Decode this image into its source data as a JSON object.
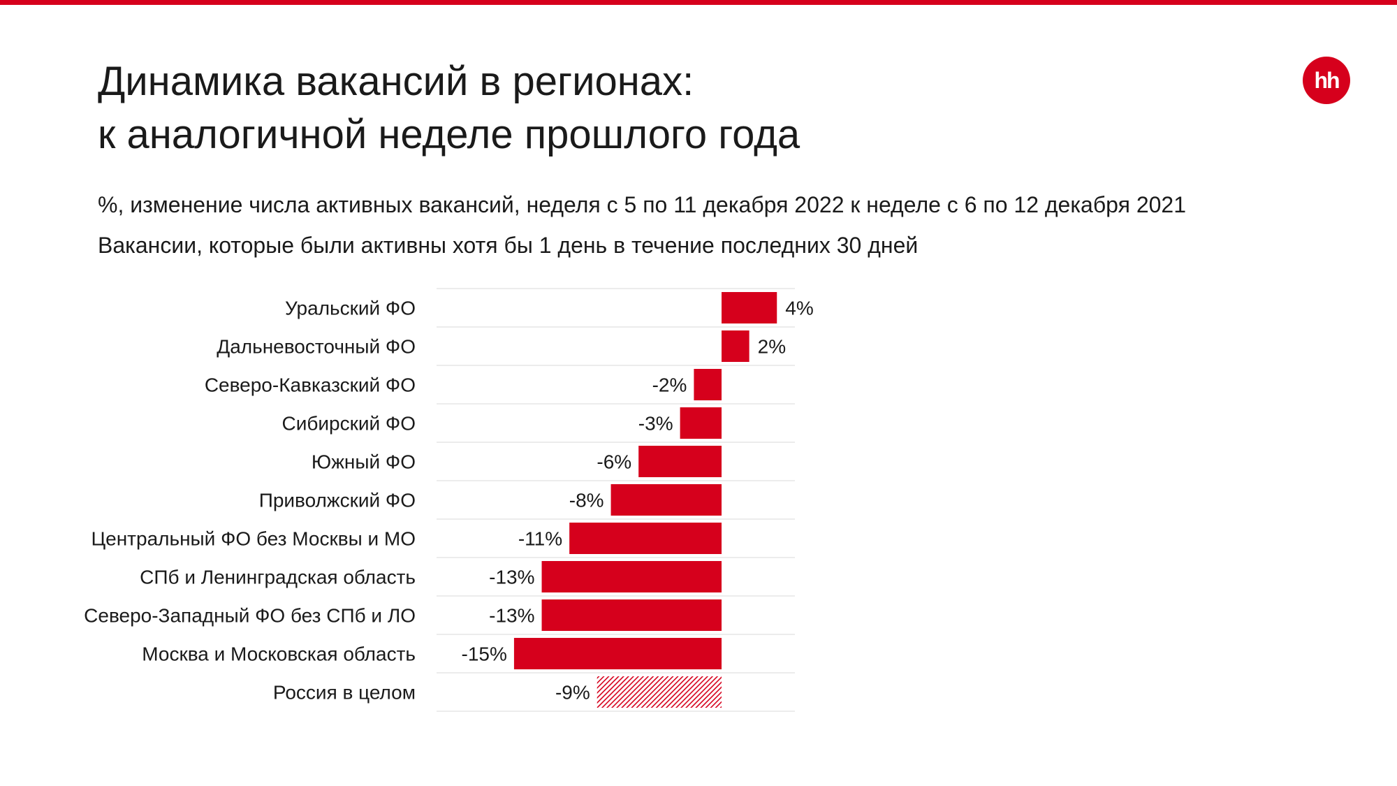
{
  "header": {
    "title_line1": "Динамика вакансий в регионах:",
    "title_line2": "к аналогичной неделе прошлого года",
    "subtitle_line1": "%, изменение числа активных вакансий, неделя с 5 по 11 декабря 2022 к неделе с 6 по 12 декабря 2021",
    "subtitle_line2": "Вакансии, которые были активны хотя бы 1 день в течение последних 30 дней"
  },
  "logo": {
    "text": "hh"
  },
  "colors": {
    "accent": "#d6001c",
    "grid": "#e6e6e6",
    "text": "#1a1a1a"
  },
  "chart_data": {
    "type": "bar",
    "orientation": "horizontal",
    "title": "",
    "xlabel": "",
    "ylabel": "",
    "categories": [
      "Уральский ФО",
      "Дальневосточный ФО",
      "Северо-Кавказский ФО",
      "Сибирский ФО",
      "Южный ФО",
      "Приволжский ФО",
      "Центральный ФО без Москвы и МО",
      "СПб и Ленинградская область",
      "Северо-Западный ФО без СПб и ЛО",
      "Москва и Московская область",
      "Россия в целом"
    ],
    "values": [
      4,
      2,
      -2,
      -3,
      -6,
      -8,
      -11,
      -13,
      -13,
      -15,
      -9
    ],
    "labels": [
      "4%",
      "2%",
      "-2%",
      "-3%",
      "-6%",
      "-8%",
      "-11%",
      "-13%",
      "-13%",
      "-15%",
      "-9%"
    ],
    "hatched": [
      false,
      false,
      false,
      false,
      false,
      false,
      false,
      false,
      false,
      false,
      true
    ],
    "xlim": [
      -20.6,
      5.3
    ],
    "grid": false,
    "legend": "none"
  }
}
